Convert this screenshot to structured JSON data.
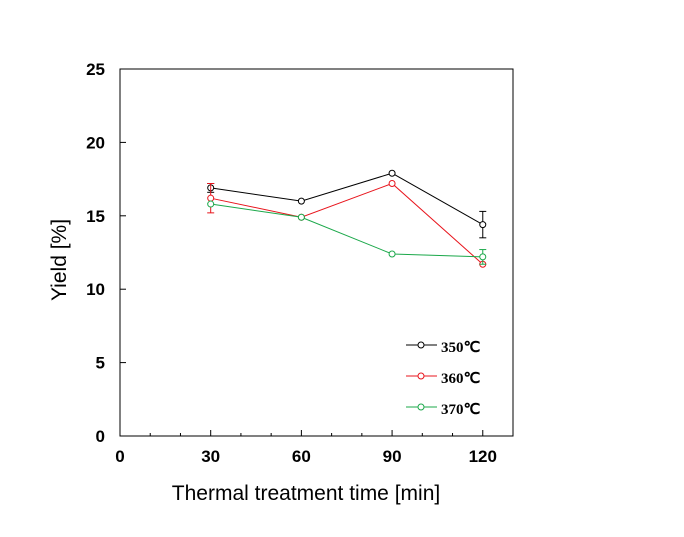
{
  "chart_data": {
    "type": "line",
    "title": "",
    "xlabel": "Thermal treatment time [min]",
    "ylabel": "Yield [%]",
    "xlim": [
      0,
      130
    ],
    "ylim": [
      0,
      25
    ],
    "x_ticks": [
      "0",
      "30",
      "60",
      "90",
      "120"
    ],
    "y_ticks": [
      "0",
      "5",
      "10",
      "15",
      "20",
      "25"
    ],
    "x_tick_values": [
      0,
      30,
      60,
      90,
      120
    ],
    "y_tick_values": [
      0,
      5,
      10,
      15,
      20,
      25
    ],
    "grid": false,
    "legend_position": "bottom-right",
    "series": [
      {
        "name": "350℃",
        "color": "#000000",
        "x": [
          30,
          60,
          90,
          120
        ],
        "y": [
          16.9,
          16.0,
          17.9,
          14.4
        ],
        "error": [
          0.3,
          0,
          0,
          0.9
        ]
      },
      {
        "name": "360℃",
        "color": "#e8141c",
        "x": [
          30,
          60,
          90,
          120
        ],
        "y": [
          16.2,
          14.9,
          17.2,
          11.7
        ],
        "error": [
          1.0,
          0,
          0,
          0
        ]
      },
      {
        "name": "370℃",
        "color": "#1ba84a",
        "x": [
          30,
          60,
          90,
          120
        ],
        "y": [
          15.8,
          14.9,
          12.4,
          12.2
        ],
        "error": [
          0,
          0,
          0,
          0.5
        ]
      }
    ]
  }
}
